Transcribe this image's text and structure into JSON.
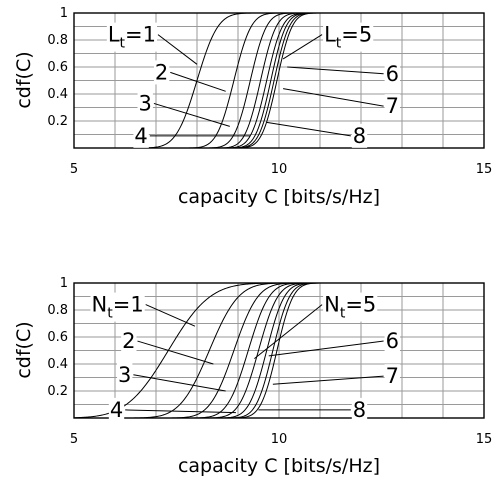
{
  "chart_data": [
    {
      "type": "line",
      "xlabel": "capacity C [bits/s/Hz]",
      "ylabel": "cdf(C)",
      "xlim": [
        5,
        15
      ],
      "ylim": [
        0,
        1
      ],
      "xticks": [
        "5",
        "10",
        "15"
      ],
      "yticks": [
        "0.2",
        "0.4",
        "0.6",
        "0.8",
        "1"
      ],
      "grid": true,
      "series": [
        {
          "name": "1",
          "mu": 8.0,
          "s": 0.4
        },
        {
          "name": "2",
          "mu": 8.9,
          "s": 0.33
        },
        {
          "name": "3",
          "mu": 9.3,
          "s": 0.31
        },
        {
          "name": "4",
          "mu": 9.55,
          "s": 0.3
        },
        {
          "name": "5",
          "mu": 9.7,
          "s": 0.3
        },
        {
          "name": "6",
          "mu": 9.8,
          "s": 0.29
        },
        {
          "name": "7",
          "mu": 9.88,
          "s": 0.29
        },
        {
          "name": "8",
          "mu": 9.95,
          "s": 0.29
        }
      ],
      "annotations": [
        {
          "sub": "t",
          "prefix": "L",
          "suffix": "=1",
          "x": 7.0,
          "y": 0.84,
          "ax": 8.0,
          "ay": 0.62,
          "anchor": "end"
        },
        {
          "text": "2",
          "x": 7.3,
          "y": 0.56,
          "ax": 8.7,
          "ay": 0.42,
          "anchor": "end"
        },
        {
          "text": "3",
          "x": 6.9,
          "y": 0.33,
          "ax": 8.8,
          "ay": 0.16,
          "anchor": "end"
        },
        {
          "text": "4",
          "x": 6.8,
          "y": 0.09,
          "ax": 9.3,
          "ay": 0.09,
          "anchor": "end"
        },
        {
          "sub": "t",
          "prefix": "L",
          "suffix": "=5",
          "x": 11.1,
          "y": 0.84,
          "ax": 10.1,
          "ay": 0.66,
          "anchor": "start"
        },
        {
          "text": "6",
          "x": 12.6,
          "y": 0.55,
          "ax": 10.2,
          "ay": 0.6,
          "anchor": "start"
        },
        {
          "text": "7",
          "x": 12.6,
          "y": 0.31,
          "ax": 10.1,
          "ay": 0.44,
          "anchor": "start"
        },
        {
          "text": "8",
          "x": 11.8,
          "y": 0.09,
          "ax": 9.7,
          "ay": 0.19,
          "anchor": "start"
        }
      ]
    },
    {
      "type": "line",
      "xlabel": "capacity C [bits/s/Hz]",
      "ylabel": "cdf(C)",
      "xlim": [
        5,
        15
      ],
      "ylim": [
        0,
        1
      ],
      "xticks": [
        "5",
        "10",
        "15"
      ],
      "yticks": [
        "0.2",
        "0.4",
        "0.6",
        "0.8",
        "1"
      ],
      "grid": true,
      "series": [
        {
          "name": "1",
          "mu": 7.3,
          "s": 0.8
        },
        {
          "name": "2",
          "mu": 8.3,
          "s": 0.56
        },
        {
          "name": "3",
          "mu": 8.9,
          "s": 0.46
        },
        {
          "name": "4",
          "mu": 9.25,
          "s": 0.4
        },
        {
          "name": "5",
          "mu": 9.5,
          "s": 0.37
        },
        {
          "name": "6",
          "mu": 9.7,
          "s": 0.34
        },
        {
          "name": "7",
          "mu": 9.85,
          "s": 0.32
        },
        {
          "name": "8",
          "mu": 9.95,
          "s": 0.31
        }
      ],
      "annotations": [
        {
          "sub": "t",
          "prefix": "N",
          "suffix": "=1",
          "x": 6.7,
          "y": 0.84,
          "ax": 7.95,
          "ay": 0.68,
          "anchor": "end"
        },
        {
          "text": "2",
          "x": 6.5,
          "y": 0.57,
          "ax": 8.4,
          "ay": 0.4,
          "anchor": "end"
        },
        {
          "text": "3",
          "x": 6.4,
          "y": 0.32,
          "ax": 8.7,
          "ay": 0.2,
          "anchor": "end"
        },
        {
          "text": "4",
          "x": 6.2,
          "y": 0.06,
          "ax": 8.95,
          "ay": 0.04,
          "anchor": "end"
        },
        {
          "sub": "t",
          "prefix": "N",
          "suffix": "=5",
          "x": 11.1,
          "y": 0.84,
          "ax": 9.4,
          "ay": 0.44,
          "anchor": "start"
        },
        {
          "text": "6",
          "x": 12.6,
          "y": 0.57,
          "ax": 9.75,
          "ay": 0.46,
          "anchor": "start"
        },
        {
          "text": "7",
          "x": 12.6,
          "y": 0.31,
          "ax": 9.85,
          "ay": 0.25,
          "anchor": "start"
        },
        {
          "text": "8",
          "x": 11.8,
          "y": 0.06,
          "ax": 9.5,
          "ay": 0.06,
          "anchor": "start"
        }
      ]
    }
  ]
}
